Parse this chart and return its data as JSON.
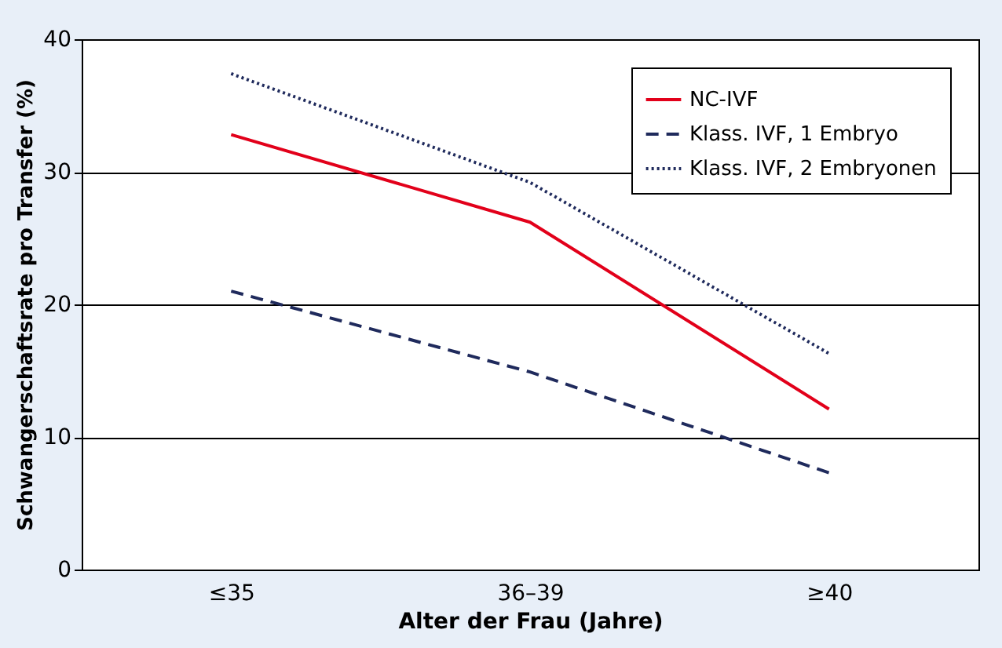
{
  "chart_data": {
    "type": "line",
    "xlabel": "Alter der Frau (Jahre)",
    "ylabel": "Schwangerschaftsrate pro Transfer (%)",
    "categories": [
      "≤35",
      "36–39",
      "≥40"
    ],
    "series": [
      {
        "name": "NC-IVF",
        "color": "#e2001a",
        "line_style": "solid",
        "values": [
          32.8,
          26.2,
          12.1
        ]
      },
      {
        "name": "Klass. IVF, 1 Embryo",
        "color": "#1f2a5c",
        "line_style": "dashed",
        "values": [
          21.0,
          14.9,
          7.3
        ]
      },
      {
        "name": "Klass. IVF, 2 Embryonen",
        "color": "#1f2a5c",
        "line_style": "dotted",
        "values": [
          37.4,
          29.2,
          16.3
        ]
      }
    ],
    "ylim": [
      0,
      40
    ],
    "yticks": [
      0,
      10,
      20,
      30,
      40
    ],
    "grid": "y",
    "legend": "top right",
    "marker": "none"
  }
}
